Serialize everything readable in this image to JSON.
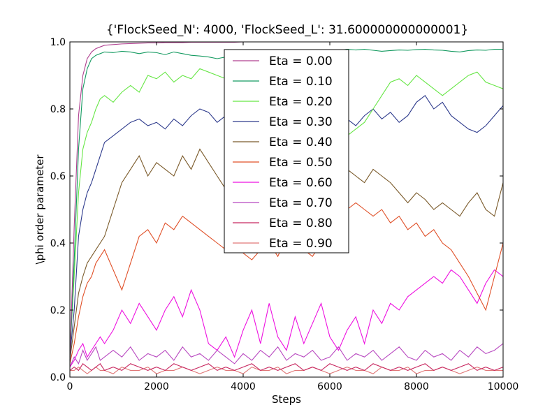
{
  "chart_data": {
    "type": "line",
    "title": "{'FlockSeed_N': 4000, 'FlockSeed_L': 31.600000000000001}",
    "xlabel": "Steps",
    "ylabel": "\\phi order parameter",
    "xlim": [
      0,
      10000
    ],
    "ylim": [
      0.0,
      1.0
    ],
    "xticks": [
      0,
      2000,
      4000,
      6000,
      8000,
      10000
    ],
    "yticks": [
      0.0,
      0.2,
      0.4,
      0.6,
      0.8,
      1.0
    ],
    "xtick_labels": [
      "0",
      "2000",
      "4000",
      "6000",
      "8000",
      "10000"
    ],
    "ytick_labels": [
      "0.0",
      "0.2",
      "0.4",
      "0.6",
      "0.8",
      "1.0"
    ],
    "grid": false,
    "legend_position": "top-center",
    "x": [
      0,
      100,
      200,
      300,
      400,
      500,
      600,
      700,
      800,
      1000,
      1200,
      1400,
      1600,
      1800,
      2000,
      2200,
      2400,
      2600,
      2800,
      3000,
      3200,
      3400,
      3600,
      3800,
      4000,
      4200,
      4400,
      4600,
      4800,
      5000,
      5200,
      5400,
      5600,
      5800,
      6000,
      6200,
      6400,
      6600,
      6800,
      7000,
      7200,
      7400,
      7600,
      7800,
      8000,
      8200,
      8400,
      8600,
      8800,
      9000,
      9200,
      9400,
      9600,
      9800,
      10000
    ],
    "series": [
      {
        "name": "Eta = 0.00",
        "color": "#b04090",
        "values": [
          0.05,
          0.45,
          0.78,
          0.9,
          0.95,
          0.97,
          0.98,
          0.985,
          0.99,
          0.992,
          0.994,
          0.995,
          0.996,
          0.997,
          0.997,
          0.998,
          0.998,
          0.998,
          0.999,
          0.999,
          0.999,
          0.999,
          0.999,
          0.999,
          1.0,
          1.0,
          1.0,
          1.0,
          1.0,
          1.0,
          1.0,
          1.0,
          1.0,
          1.0,
          1.0,
          1.0,
          1.0,
          1.0,
          1.0,
          1.0,
          1.0,
          1.0,
          1.0,
          1.0,
          1.0,
          1.0,
          1.0,
          1.0,
          1.0,
          1.0,
          1.0,
          1.0,
          1.0,
          1.0,
          1.0
        ]
      },
      {
        "name": "Eta = 0.10",
        "color": "#149a60",
        "values": [
          0.05,
          0.35,
          0.68,
          0.86,
          0.92,
          0.95,
          0.96,
          0.965,
          0.97,
          0.968,
          0.972,
          0.97,
          0.965,
          0.97,
          0.968,
          0.962,
          0.97,
          0.965,
          0.96,
          0.958,
          0.955,
          0.95,
          0.955,
          0.95,
          0.955,
          0.96,
          0.965,
          0.962,
          0.96,
          0.965,
          0.968,
          0.97,
          0.972,
          0.968,
          0.97,
          0.975,
          0.978,
          0.976,
          0.978,
          0.975,
          0.972,
          0.974,
          0.976,
          0.975,
          0.977,
          0.978,
          0.976,
          0.975,
          0.972,
          0.97,
          0.974,
          0.976,
          0.975,
          0.978,
          0.978
        ]
      },
      {
        "name": "Eta = 0.20",
        "color": "#66e645",
        "values": [
          0.08,
          0.3,
          0.55,
          0.68,
          0.73,
          0.76,
          0.8,
          0.83,
          0.84,
          0.82,
          0.85,
          0.87,
          0.85,
          0.9,
          0.89,
          0.91,
          0.88,
          0.9,
          0.89,
          0.92,
          0.91,
          0.9,
          0.89,
          0.91,
          0.9,
          0.88,
          0.87,
          0.88,
          0.86,
          0.85,
          0.84,
          0.82,
          0.8,
          0.78,
          0.76,
          0.74,
          0.72,
          0.74,
          0.76,
          0.8,
          0.84,
          0.88,
          0.89,
          0.87,
          0.9,
          0.88,
          0.86,
          0.84,
          0.86,
          0.88,
          0.9,
          0.91,
          0.88,
          0.87,
          0.86
        ]
      },
      {
        "name": "Eta = 0.30",
        "color": "#2d3a8c",
        "values": [
          0.06,
          0.2,
          0.42,
          0.5,
          0.55,
          0.58,
          0.62,
          0.66,
          0.7,
          0.72,
          0.74,
          0.76,
          0.77,
          0.75,
          0.76,
          0.74,
          0.77,
          0.75,
          0.78,
          0.8,
          0.79,
          0.76,
          0.78,
          0.79,
          0.76,
          0.77,
          0.75,
          0.74,
          0.76,
          0.78,
          0.77,
          0.75,
          0.74,
          0.73,
          0.76,
          0.78,
          0.77,
          0.75,
          0.78,
          0.8,
          0.77,
          0.79,
          0.76,
          0.78,
          0.82,
          0.84,
          0.8,
          0.82,
          0.78,
          0.76,
          0.74,
          0.73,
          0.75,
          0.78,
          0.81
        ]
      },
      {
        "name": "Eta = 0.40",
        "color": "#7a5a2a",
        "values": [
          0.05,
          0.15,
          0.25,
          0.3,
          0.34,
          0.36,
          0.38,
          0.4,
          0.42,
          0.5,
          0.58,
          0.62,
          0.66,
          0.6,
          0.64,
          0.62,
          0.6,
          0.66,
          0.62,
          0.68,
          0.64,
          0.6,
          0.56,
          0.52,
          0.58,
          0.55,
          0.6,
          0.62,
          0.58,
          0.64,
          0.6,
          0.62,
          0.58,
          0.6,
          0.64,
          0.66,
          0.62,
          0.6,
          0.58,
          0.62,
          0.6,
          0.58,
          0.55,
          0.52,
          0.55,
          0.53,
          0.5,
          0.52,
          0.5,
          0.48,
          0.52,
          0.55,
          0.5,
          0.48,
          0.58
        ]
      },
      {
        "name": "Eta = 0.50",
        "color": "#e05028",
        "values": [
          0.04,
          0.1,
          0.18,
          0.24,
          0.28,
          0.3,
          0.34,
          0.36,
          0.38,
          0.32,
          0.26,
          0.34,
          0.42,
          0.44,
          0.4,
          0.46,
          0.44,
          0.48,
          0.46,
          0.44,
          0.42,
          0.4,
          0.38,
          0.42,
          0.37,
          0.35,
          0.38,
          0.4,
          0.36,
          0.42,
          0.44,
          0.38,
          0.36,
          0.4,
          0.45,
          0.48,
          0.5,
          0.52,
          0.5,
          0.48,
          0.5,
          0.46,
          0.48,
          0.44,
          0.46,
          0.42,
          0.44,
          0.4,
          0.38,
          0.34,
          0.3,
          0.25,
          0.2,
          0.3,
          0.4
        ]
      },
      {
        "name": "Eta = 0.60",
        "color": "#ee10e0",
        "values": [
          0.03,
          0.05,
          0.08,
          0.1,
          0.06,
          0.08,
          0.1,
          0.12,
          0.1,
          0.14,
          0.2,
          0.16,
          0.22,
          0.18,
          0.14,
          0.2,
          0.24,
          0.18,
          0.26,
          0.2,
          0.1,
          0.08,
          0.12,
          0.06,
          0.14,
          0.2,
          0.1,
          0.22,
          0.12,
          0.08,
          0.18,
          0.1,
          0.16,
          0.22,
          0.12,
          0.08,
          0.14,
          0.18,
          0.1,
          0.2,
          0.16,
          0.22,
          0.2,
          0.24,
          0.26,
          0.28,
          0.3,
          0.28,
          0.32,
          0.3,
          0.26,
          0.22,
          0.28,
          0.32,
          0.3
        ]
      },
      {
        "name": "Eta = 0.70",
        "color": "#b848c0",
        "values": [
          0.03,
          0.06,
          0.04,
          0.08,
          0.05,
          0.07,
          0.09,
          0.05,
          0.06,
          0.08,
          0.06,
          0.09,
          0.05,
          0.07,
          0.06,
          0.08,
          0.05,
          0.09,
          0.06,
          0.07,
          0.05,
          0.08,
          0.06,
          0.04,
          0.07,
          0.05,
          0.08,
          0.06,
          0.09,
          0.05,
          0.07,
          0.06,
          0.08,
          0.05,
          0.06,
          0.09,
          0.05,
          0.07,
          0.06,
          0.08,
          0.05,
          0.07,
          0.09,
          0.06,
          0.05,
          0.08,
          0.06,
          0.07,
          0.05,
          0.08,
          0.06,
          0.09,
          0.07,
          0.08,
          0.1
        ]
      },
      {
        "name": "Eta = 0.80",
        "color": "#c82860",
        "values": [
          0.02,
          0.03,
          0.02,
          0.04,
          0.03,
          0.02,
          0.03,
          0.04,
          0.02,
          0.03,
          0.02,
          0.04,
          0.03,
          0.02,
          0.03,
          0.02,
          0.04,
          0.03,
          0.02,
          0.03,
          0.04,
          0.02,
          0.03,
          0.02,
          0.03,
          0.04,
          0.02,
          0.03,
          0.02,
          0.03,
          0.04,
          0.02,
          0.03,
          0.02,
          0.04,
          0.03,
          0.02,
          0.03,
          0.02,
          0.04,
          0.03,
          0.02,
          0.03,
          0.02,
          0.03,
          0.04,
          0.02,
          0.03,
          0.02,
          0.03,
          0.04,
          0.02,
          0.03,
          0.02,
          0.03
        ]
      },
      {
        "name": "Eta = 0.90",
        "color": "#e07878",
        "values": [
          0.02,
          0.02,
          0.03,
          0.02,
          0.01,
          0.02,
          0.03,
          0.02,
          0.02,
          0.01,
          0.03,
          0.02,
          0.02,
          0.03,
          0.01,
          0.02,
          0.02,
          0.03,
          0.02,
          0.01,
          0.02,
          0.03,
          0.02,
          0.02,
          0.01,
          0.03,
          0.02,
          0.02,
          0.03,
          0.01,
          0.02,
          0.02,
          0.03,
          0.02,
          0.01,
          0.02,
          0.03,
          0.02,
          0.02,
          0.01,
          0.03,
          0.02,
          0.02,
          0.03,
          0.01,
          0.02,
          0.02,
          0.03,
          0.02,
          0.01,
          0.02,
          0.03,
          0.02,
          0.02,
          0.02
        ]
      }
    ]
  }
}
